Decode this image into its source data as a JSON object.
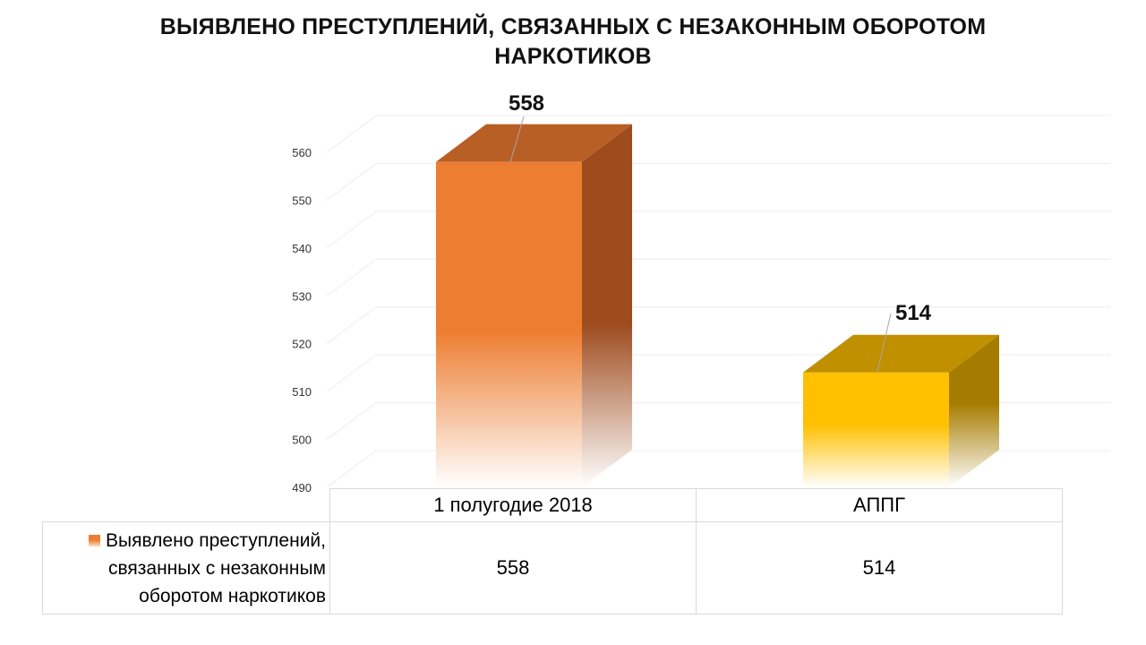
{
  "title": "ВЫЯВЛЕНО ПРЕСТУПЛЕНИЙ, СВЯЗАННЫХ С НЕЗАКОННЫМ ОБОРОТОМ НАРКОТИКОВ",
  "chart_data": {
    "type": "bar",
    "style": "3d-clustered-column",
    "title": "ВЫЯВЛЕНО ПРЕСТУПЛЕНИЙ, СВЯЗАННЫХ С НЕЗАКОННЫМ ОБОРОТОМ НАРКОТИКОВ",
    "categories": [
      "1 полугодие 2018",
      "АППГ"
    ],
    "series": [
      {
        "name": "Выявлено преступлений, связанных с незаконным оборотом наркотиков",
        "values": [
          558,
          514
        ]
      }
    ],
    "ylim": [
      490,
      560
    ],
    "yticks": [
      490,
      500,
      510,
      520,
      530,
      540,
      550,
      560
    ],
    "grid": true,
    "legend": "data-table",
    "data_table": true,
    "colors": [
      "#ED7D31",
      "#FFC000"
    ]
  },
  "table": {
    "headers": [
      "1 полугодие 2018",
      "АППГ"
    ],
    "row_label": "Выявлено преступлений, связанных с незаконным оборотом наркотиков",
    "row_label_lines": [
      "Выявлено преступлений,",
      "связанных с незаконным",
      "оборотом наркотиков"
    ],
    "values": [
      "558",
      "514"
    ]
  }
}
